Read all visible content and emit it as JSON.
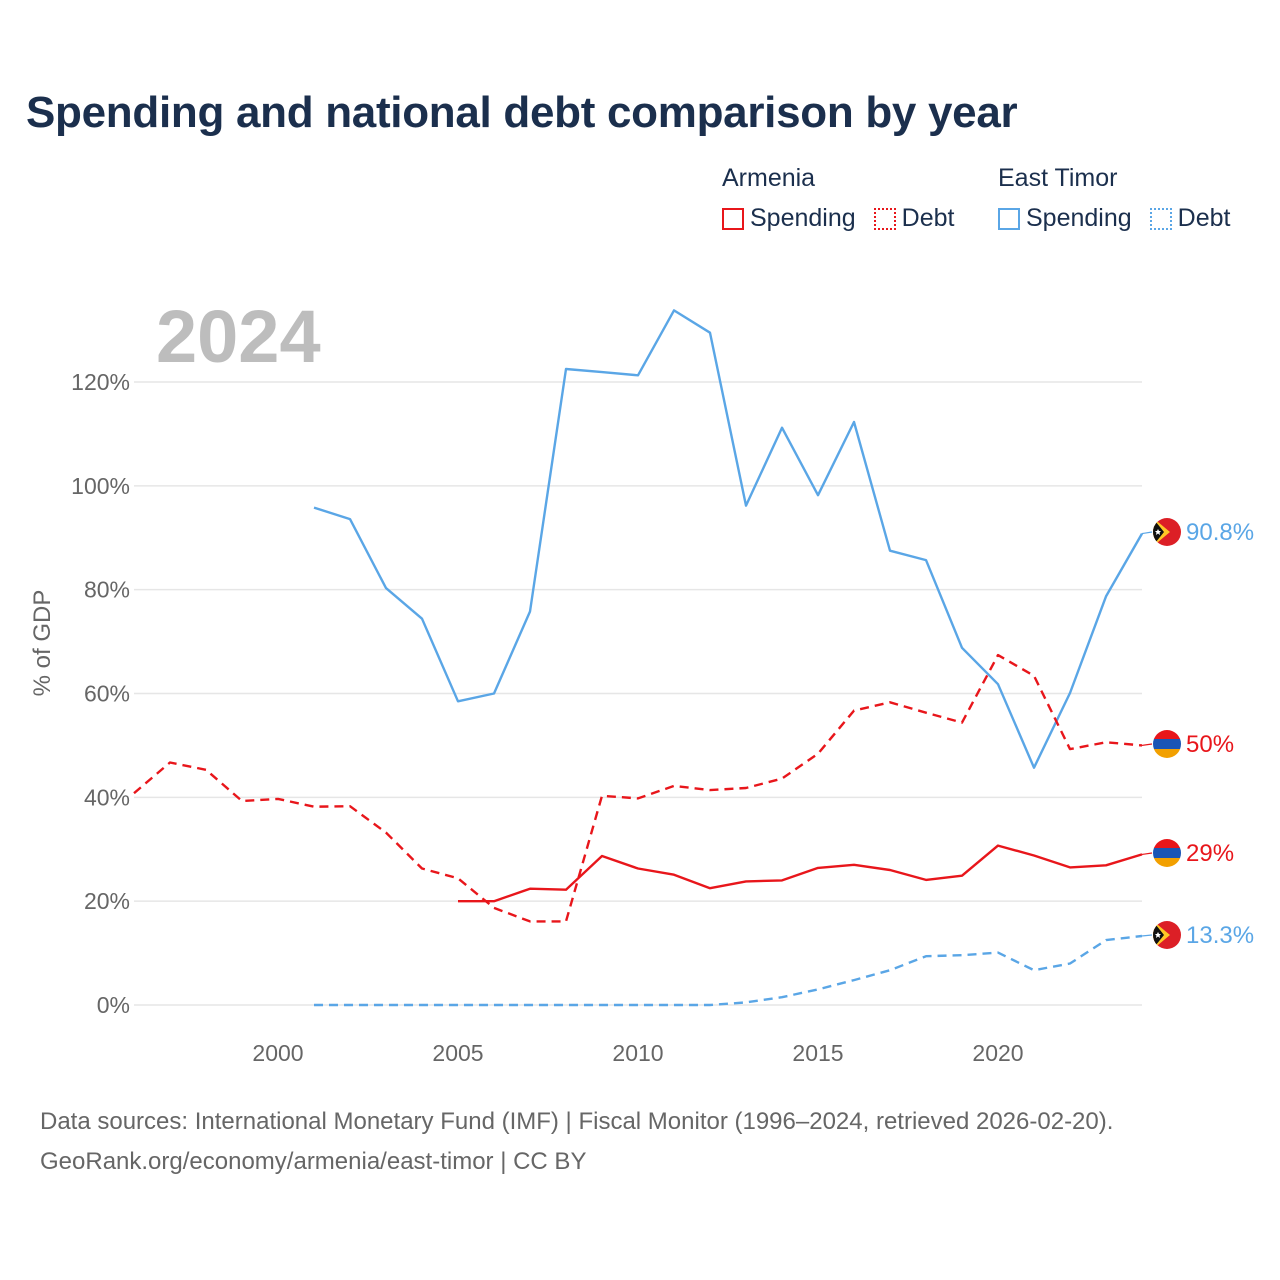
{
  "title": "Spending and national debt comparison by year",
  "legend": {
    "groups": [
      {
        "country": "Armenia",
        "color": "#e8161b",
        "items": [
          {
            "label": "Spending",
            "style": "solid"
          },
          {
            "label": "Debt",
            "style": "dotted"
          }
        ]
      },
      {
        "country": "East Timor",
        "color": "#5aa6e6",
        "items": [
          {
            "label": "Spending",
            "style": "solid"
          },
          {
            "label": "Debt",
            "style": "dotted"
          }
        ]
      }
    ]
  },
  "sources": {
    "line1": "Data sources: International Monetary Fund (IMF) | Fiscal Monitor (1996–2024, retrieved 2026-02-20).",
    "line2": "GeoRank.org/economy/armenia/east-timor | CC BY"
  },
  "chart_data": {
    "type": "line",
    "year_label": "2024",
    "ylabel": "% of GDP",
    "xlim": [
      1996,
      2024
    ],
    "ylim": [
      0,
      120
    ],
    "x_ticks": [
      2000,
      2005,
      2010,
      2015,
      2020
    ],
    "y_ticks": [
      0,
      20,
      40,
      60,
      80,
      100,
      120
    ],
    "y_tick_labels": [
      "0%",
      "20%",
      "40%",
      "60%",
      "80%",
      "100%",
      "120%"
    ],
    "grid": true,
    "series": [
      {
        "name": "East Timor Spending",
        "color": "#5aa6e6",
        "dash": false,
        "flag": "east-timor",
        "end_label": "90.8%",
        "x": [
          2001,
          2002,
          2003,
          2004,
          2005,
          2006,
          2007,
          2008,
          2009,
          2010,
          2011,
          2012,
          2013,
          2014,
          2015,
          2016,
          2017,
          2018,
          2019,
          2020,
          2021,
          2022,
          2023,
          2024
        ],
        "values": [
          95.8,
          93.6,
          80.3,
          74.4,
          58.5,
          60.0,
          75.8,
          122.5,
          121.9,
          121.3,
          133.8,
          129.5,
          96.2,
          111.2,
          98.2,
          112.3,
          87.5,
          85.7,
          68.8,
          61.8,
          45.7,
          60.1,
          78.7,
          90.8
        ]
      },
      {
        "name": "Armenia Debt",
        "color": "#e8161b",
        "dash": true,
        "flag": "armenia",
        "end_label": "50%",
        "x": [
          1996,
          1997,
          1998,
          1999,
          2000,
          2001,
          2002,
          2003,
          2004,
          2005,
          2006,
          2007,
          2008,
          2009,
          2010,
          2011,
          2012,
          2013,
          2014,
          2015,
          2016,
          2017,
          2018,
          2019,
          2020,
          2021,
          2022,
          2023,
          2024
        ],
        "values": [
          40.8,
          46.7,
          45.3,
          39.3,
          39.7,
          38.2,
          38.3,
          33.2,
          26.3,
          24.4,
          18.7,
          16.1,
          16.1,
          40.3,
          39.8,
          42.2,
          41.4,
          41.8,
          43.6,
          48.4,
          56.7,
          58.3,
          56.3,
          54.4,
          67.4,
          63.4,
          49.3,
          50.6,
          50.0
        ]
      },
      {
        "name": "Armenia Spending",
        "color": "#e8161b",
        "dash": false,
        "flag": "armenia",
        "end_label": "29%",
        "x": [
          2005,
          2006,
          2007,
          2008,
          2009,
          2010,
          2011,
          2012,
          2013,
          2014,
          2015,
          2016,
          2017,
          2018,
          2019,
          2020,
          2021,
          2022,
          2023,
          2024
        ],
        "values": [
          20.0,
          20.0,
          22.4,
          22.2,
          28.7,
          26.3,
          25.1,
          22.5,
          23.8,
          24.0,
          26.4,
          27.0,
          26.0,
          24.1,
          24.9,
          30.7,
          28.8,
          26.5,
          26.9,
          29.0
        ]
      },
      {
        "name": "East Timor Debt",
        "color": "#5aa6e6",
        "dash": true,
        "flag": "east-timor",
        "end_label": "13.3%",
        "x": [
          2001,
          2002,
          2003,
          2004,
          2005,
          2006,
          2007,
          2008,
          2009,
          2010,
          2011,
          2012,
          2013,
          2014,
          2015,
          2016,
          2017,
          2018,
          2019,
          2020,
          2021,
          2022,
          2023,
          2024
        ],
        "values": [
          0,
          0,
          0,
          0,
          0,
          0,
          0,
          0,
          0,
          0,
          0,
          0,
          0.5,
          1.5,
          3.0,
          4.8,
          6.7,
          9.4,
          9.6,
          10.1,
          6.7,
          8.0,
          12.5,
          13.3
        ]
      }
    ]
  }
}
